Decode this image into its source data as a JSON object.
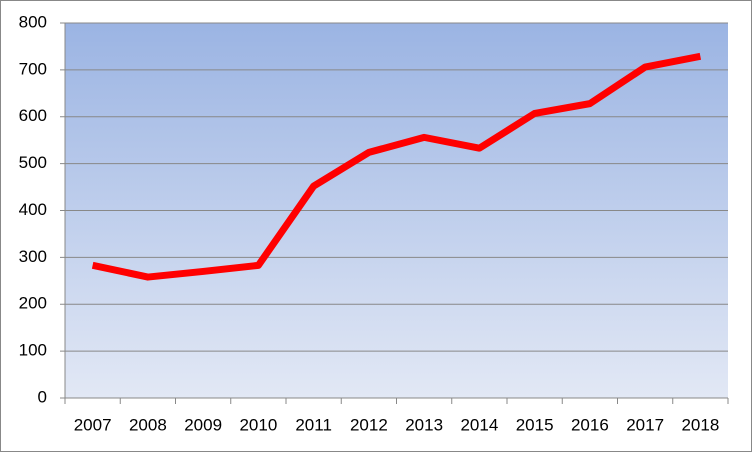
{
  "chart_data": {
    "type": "line",
    "categories": [
      "2007",
      "2008",
      "2009",
      "2010",
      "2011",
      "2012",
      "2013",
      "2014",
      "2015",
      "2016",
      "2017",
      "2018"
    ],
    "series": [
      {
        "color": "#ff0000",
        "values": [
          283,
          258,
          270,
          283,
          452,
          524,
          556,
          533,
          607,
          628,
          706,
          729
        ]
      }
    ],
    "ylim": [
      0,
      800
    ],
    "yticks": [
      0,
      100,
      200,
      300,
      400,
      500,
      600,
      700,
      800
    ],
    "grid": true
  }
}
